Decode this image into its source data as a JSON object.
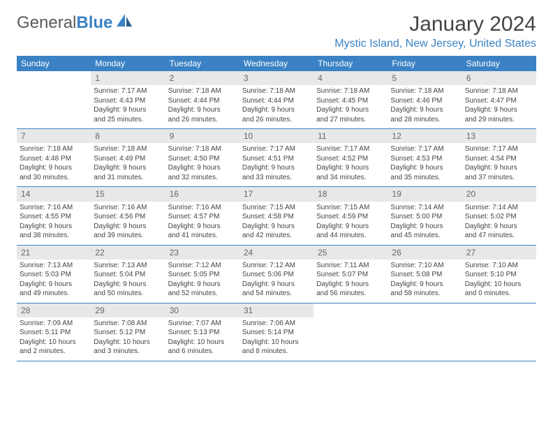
{
  "logo": {
    "textGray": "General",
    "textBlue": "Blue"
  },
  "title": "January 2024",
  "location": "Mystic Island, New Jersey, United States",
  "dayHeaders": [
    "Sunday",
    "Monday",
    "Tuesday",
    "Wednesday",
    "Thursday",
    "Friday",
    "Saturday"
  ],
  "colors": {
    "headerBg": "#3b82c4",
    "headerText": "#ffffff",
    "dayNumBg": "#e8e8e8",
    "dayNumText": "#666666",
    "bodyText": "#444444",
    "accent": "#3b82c4"
  },
  "weeks": [
    [
      null,
      {
        "n": "1",
        "sr": "Sunrise: 7:17 AM",
        "ss": "Sunset: 4:43 PM",
        "d1": "Daylight: 9 hours",
        "d2": "and 25 minutes."
      },
      {
        "n": "2",
        "sr": "Sunrise: 7:18 AM",
        "ss": "Sunset: 4:44 PM",
        "d1": "Daylight: 9 hours",
        "d2": "and 26 minutes."
      },
      {
        "n": "3",
        "sr": "Sunrise: 7:18 AM",
        "ss": "Sunset: 4:44 PM",
        "d1": "Daylight: 9 hours",
        "d2": "and 26 minutes."
      },
      {
        "n": "4",
        "sr": "Sunrise: 7:18 AM",
        "ss": "Sunset: 4:45 PM",
        "d1": "Daylight: 9 hours",
        "d2": "and 27 minutes."
      },
      {
        "n": "5",
        "sr": "Sunrise: 7:18 AM",
        "ss": "Sunset: 4:46 PM",
        "d1": "Daylight: 9 hours",
        "d2": "and 28 minutes."
      },
      {
        "n": "6",
        "sr": "Sunrise: 7:18 AM",
        "ss": "Sunset: 4:47 PM",
        "d1": "Daylight: 9 hours",
        "d2": "and 29 minutes."
      }
    ],
    [
      {
        "n": "7",
        "sr": "Sunrise: 7:18 AM",
        "ss": "Sunset: 4:48 PM",
        "d1": "Daylight: 9 hours",
        "d2": "and 30 minutes."
      },
      {
        "n": "8",
        "sr": "Sunrise: 7:18 AM",
        "ss": "Sunset: 4:49 PM",
        "d1": "Daylight: 9 hours",
        "d2": "and 31 minutes."
      },
      {
        "n": "9",
        "sr": "Sunrise: 7:18 AM",
        "ss": "Sunset: 4:50 PM",
        "d1": "Daylight: 9 hours",
        "d2": "and 32 minutes."
      },
      {
        "n": "10",
        "sr": "Sunrise: 7:17 AM",
        "ss": "Sunset: 4:51 PM",
        "d1": "Daylight: 9 hours",
        "d2": "and 33 minutes."
      },
      {
        "n": "11",
        "sr": "Sunrise: 7:17 AM",
        "ss": "Sunset: 4:52 PM",
        "d1": "Daylight: 9 hours",
        "d2": "and 34 minutes."
      },
      {
        "n": "12",
        "sr": "Sunrise: 7:17 AM",
        "ss": "Sunset: 4:53 PM",
        "d1": "Daylight: 9 hours",
        "d2": "and 35 minutes."
      },
      {
        "n": "13",
        "sr": "Sunrise: 7:17 AM",
        "ss": "Sunset: 4:54 PM",
        "d1": "Daylight: 9 hours",
        "d2": "and 37 minutes."
      }
    ],
    [
      {
        "n": "14",
        "sr": "Sunrise: 7:16 AM",
        "ss": "Sunset: 4:55 PM",
        "d1": "Daylight: 9 hours",
        "d2": "and 38 minutes."
      },
      {
        "n": "15",
        "sr": "Sunrise: 7:16 AM",
        "ss": "Sunset: 4:56 PM",
        "d1": "Daylight: 9 hours",
        "d2": "and 39 minutes."
      },
      {
        "n": "16",
        "sr": "Sunrise: 7:16 AM",
        "ss": "Sunset: 4:57 PM",
        "d1": "Daylight: 9 hours",
        "d2": "and 41 minutes."
      },
      {
        "n": "17",
        "sr": "Sunrise: 7:15 AM",
        "ss": "Sunset: 4:58 PM",
        "d1": "Daylight: 9 hours",
        "d2": "and 42 minutes."
      },
      {
        "n": "18",
        "sr": "Sunrise: 7:15 AM",
        "ss": "Sunset: 4:59 PM",
        "d1": "Daylight: 9 hours",
        "d2": "and 44 minutes."
      },
      {
        "n": "19",
        "sr": "Sunrise: 7:14 AM",
        "ss": "Sunset: 5:00 PM",
        "d1": "Daylight: 9 hours",
        "d2": "and 45 minutes."
      },
      {
        "n": "20",
        "sr": "Sunrise: 7:14 AM",
        "ss": "Sunset: 5:02 PM",
        "d1": "Daylight: 9 hours",
        "d2": "and 47 minutes."
      }
    ],
    [
      {
        "n": "21",
        "sr": "Sunrise: 7:13 AM",
        "ss": "Sunset: 5:03 PM",
        "d1": "Daylight: 9 hours",
        "d2": "and 49 minutes."
      },
      {
        "n": "22",
        "sr": "Sunrise: 7:13 AM",
        "ss": "Sunset: 5:04 PM",
        "d1": "Daylight: 9 hours",
        "d2": "and 50 minutes."
      },
      {
        "n": "23",
        "sr": "Sunrise: 7:12 AM",
        "ss": "Sunset: 5:05 PM",
        "d1": "Daylight: 9 hours",
        "d2": "and 52 minutes."
      },
      {
        "n": "24",
        "sr": "Sunrise: 7:12 AM",
        "ss": "Sunset: 5:06 PM",
        "d1": "Daylight: 9 hours",
        "d2": "and 54 minutes."
      },
      {
        "n": "25",
        "sr": "Sunrise: 7:11 AM",
        "ss": "Sunset: 5:07 PM",
        "d1": "Daylight: 9 hours",
        "d2": "and 56 minutes."
      },
      {
        "n": "26",
        "sr": "Sunrise: 7:10 AM",
        "ss": "Sunset: 5:08 PM",
        "d1": "Daylight: 9 hours",
        "d2": "and 58 minutes."
      },
      {
        "n": "27",
        "sr": "Sunrise: 7:10 AM",
        "ss": "Sunset: 5:10 PM",
        "d1": "Daylight: 10 hours",
        "d2": "and 0 minutes."
      }
    ],
    [
      {
        "n": "28",
        "sr": "Sunrise: 7:09 AM",
        "ss": "Sunset: 5:11 PM",
        "d1": "Daylight: 10 hours",
        "d2": "and 2 minutes."
      },
      {
        "n": "29",
        "sr": "Sunrise: 7:08 AM",
        "ss": "Sunset: 5:12 PM",
        "d1": "Daylight: 10 hours",
        "d2": "and 3 minutes."
      },
      {
        "n": "30",
        "sr": "Sunrise: 7:07 AM",
        "ss": "Sunset: 5:13 PM",
        "d1": "Daylight: 10 hours",
        "d2": "and 6 minutes."
      },
      {
        "n": "31",
        "sr": "Sunrise: 7:06 AM",
        "ss": "Sunset: 5:14 PM",
        "d1": "Daylight: 10 hours",
        "d2": "and 8 minutes."
      },
      null,
      null,
      null
    ]
  ]
}
